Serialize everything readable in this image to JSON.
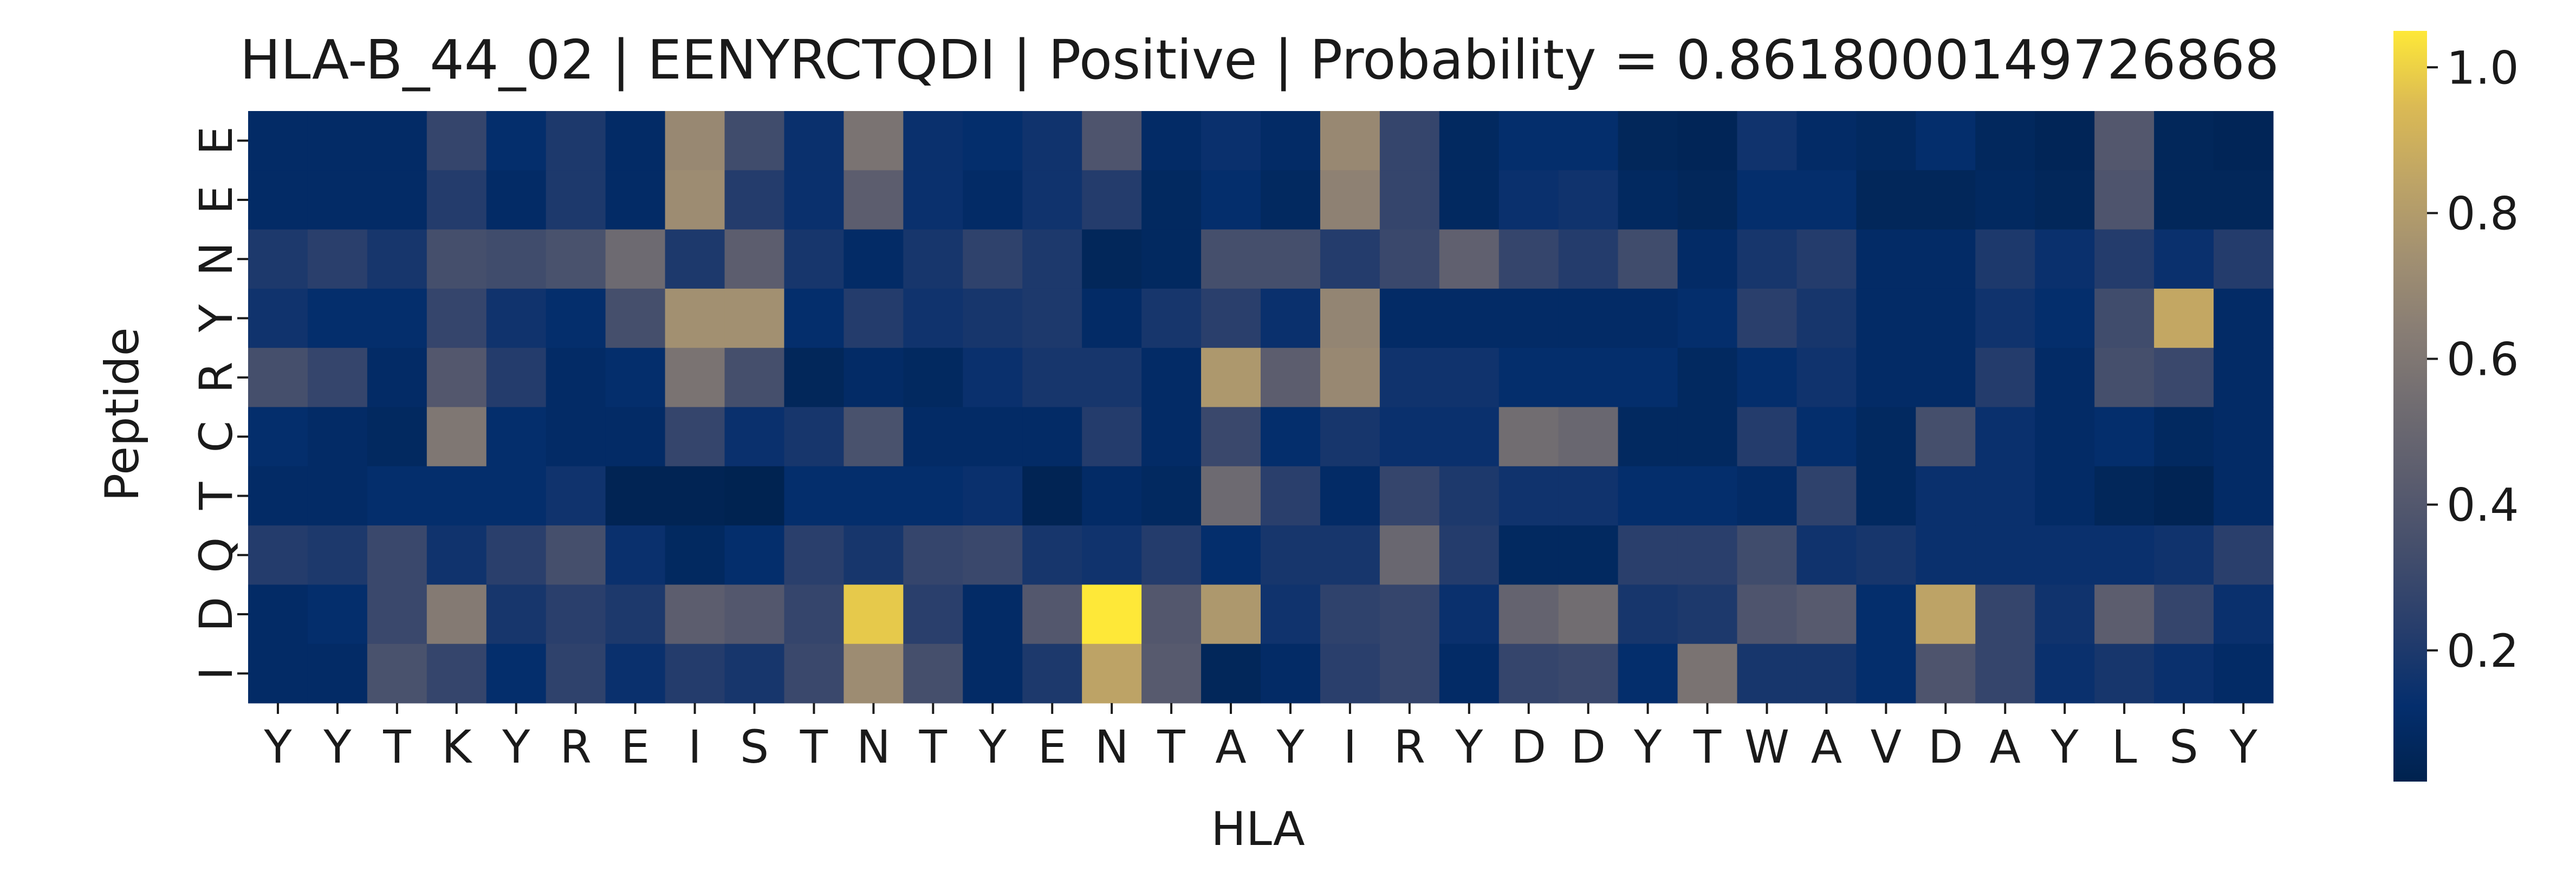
{
  "chart_data": {
    "type": "heatmap",
    "title": "HLA-B_44_02 | EENYRCTQDI | Positive | Probability = 0.8618000149726868",
    "xlabel": "HLA",
    "ylabel": "Peptide",
    "x_ticks": [
      "Y",
      "Y",
      "T",
      "K",
      "Y",
      "R",
      "E",
      "I",
      "S",
      "T",
      "N",
      "T",
      "Y",
      "E",
      "N",
      "T",
      "A",
      "Y",
      "I",
      "R",
      "Y",
      "D",
      "D",
      "Y",
      "T",
      "W",
      "A",
      "V",
      "D",
      "A",
      "Y",
      "L",
      "S",
      "Y"
    ],
    "y_ticks": [
      "E",
      "E",
      "N",
      "Y",
      "R",
      "C",
      "T",
      "Q",
      "D",
      "I"
    ],
    "colormap": "cividis",
    "colorbar": {
      "min": 0.02,
      "max": 1.05,
      "ticks": [
        0.2,
        0.4,
        0.6,
        0.8,
        1.0
      ],
      "tick_labels": [
        "0.2",
        "0.4",
        "0.6",
        "0.8",
        "1.0"
      ]
    },
    "values": [
      [
        0.1,
        0.1,
        0.1,
        0.28,
        0.12,
        0.2,
        0.1,
        0.7,
        0.32,
        0.14,
        0.58,
        0.14,
        0.12,
        0.16,
        0.38,
        0.1,
        0.14,
        0.1,
        0.7,
        0.28,
        0.08,
        0.12,
        0.12,
        0.06,
        0.05,
        0.16,
        0.1,
        0.08,
        0.12,
        0.07,
        0.05,
        0.4,
        0.06,
        0.05
      ],
      [
        0.1,
        0.1,
        0.1,
        0.22,
        0.1,
        0.2,
        0.1,
        0.72,
        0.22,
        0.14,
        0.44,
        0.14,
        0.1,
        0.16,
        0.22,
        0.08,
        0.12,
        0.08,
        0.66,
        0.28,
        0.08,
        0.14,
        0.16,
        0.08,
        0.06,
        0.12,
        0.12,
        0.06,
        0.06,
        0.08,
        0.06,
        0.38,
        0.06,
        0.06
      ],
      [
        0.2,
        0.24,
        0.18,
        0.34,
        0.32,
        0.36,
        0.52,
        0.2,
        0.44,
        0.18,
        0.1,
        0.18,
        0.26,
        0.2,
        0.06,
        0.08,
        0.34,
        0.34,
        0.22,
        0.3,
        0.46,
        0.28,
        0.22,
        0.32,
        0.1,
        0.18,
        0.22,
        0.1,
        0.1,
        0.2,
        0.14,
        0.22,
        0.14,
        0.22
      ],
      [
        0.16,
        0.12,
        0.12,
        0.28,
        0.16,
        0.12,
        0.34,
        0.74,
        0.74,
        0.12,
        0.22,
        0.16,
        0.18,
        0.2,
        0.1,
        0.18,
        0.24,
        0.14,
        0.68,
        0.1,
        0.1,
        0.1,
        0.1,
        0.1,
        0.12,
        0.24,
        0.18,
        0.1,
        0.1,
        0.16,
        0.12,
        0.32,
        0.86,
        0.1
      ],
      [
        0.34,
        0.28,
        0.1,
        0.4,
        0.22,
        0.1,
        0.12,
        0.58,
        0.34,
        0.06,
        0.1,
        0.08,
        0.14,
        0.18,
        0.18,
        0.1,
        0.78,
        0.44,
        0.7,
        0.16,
        0.16,
        0.12,
        0.12,
        0.12,
        0.08,
        0.12,
        0.16,
        0.1,
        0.1,
        0.22,
        0.1,
        0.34,
        0.3,
        0.1
      ],
      [
        0.12,
        0.1,
        0.08,
        0.6,
        0.12,
        0.1,
        0.1,
        0.28,
        0.14,
        0.18,
        0.36,
        0.1,
        0.1,
        0.1,
        0.22,
        0.1,
        0.3,
        0.12,
        0.18,
        0.14,
        0.14,
        0.54,
        0.5,
        0.08,
        0.08,
        0.22,
        0.12,
        0.08,
        0.34,
        0.14,
        0.1,
        0.12,
        0.08,
        0.1
      ],
      [
        0.1,
        0.1,
        0.12,
        0.12,
        0.12,
        0.16,
        0.04,
        0.04,
        0.03,
        0.12,
        0.12,
        0.12,
        0.14,
        0.04,
        0.1,
        0.08,
        0.52,
        0.24,
        0.1,
        0.28,
        0.2,
        0.16,
        0.16,
        0.12,
        0.12,
        0.1,
        0.26,
        0.08,
        0.14,
        0.14,
        0.1,
        0.06,
        0.04,
        0.1
      ],
      [
        0.22,
        0.2,
        0.3,
        0.16,
        0.24,
        0.34,
        0.14,
        0.08,
        0.12,
        0.24,
        0.18,
        0.28,
        0.3,
        0.18,
        0.16,
        0.22,
        0.12,
        0.18,
        0.18,
        0.5,
        0.22,
        0.08,
        0.08,
        0.24,
        0.24,
        0.32,
        0.16,
        0.18,
        0.14,
        0.14,
        0.14,
        0.14,
        0.16,
        0.24
      ],
      [
        0.1,
        0.12,
        0.3,
        0.62,
        0.18,
        0.24,
        0.2,
        0.44,
        0.4,
        0.28,
        0.98,
        0.24,
        0.1,
        0.4,
        1.05,
        0.4,
        0.78,
        0.16,
        0.26,
        0.28,
        0.14,
        0.48,
        0.54,
        0.18,
        0.2,
        0.38,
        0.42,
        0.12,
        0.84,
        0.28,
        0.16,
        0.44,
        0.28,
        0.14
      ],
      [
        0.1,
        0.1,
        0.36,
        0.28,
        0.12,
        0.26,
        0.14,
        0.22,
        0.18,
        0.3,
        0.72,
        0.34,
        0.1,
        0.2,
        0.84,
        0.42,
        0.06,
        0.1,
        0.24,
        0.28,
        0.1,
        0.28,
        0.3,
        0.12,
        0.58,
        0.18,
        0.18,
        0.12,
        0.38,
        0.28,
        0.14,
        0.18,
        0.14,
        0.1
      ]
    ]
  }
}
